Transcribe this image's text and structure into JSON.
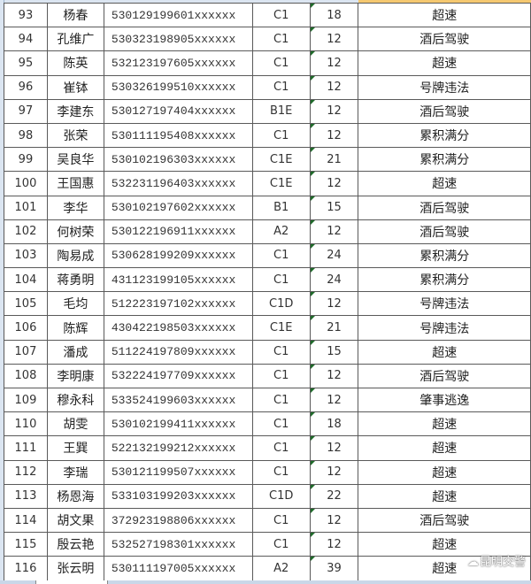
{
  "rows": [
    {
      "no": "93",
      "name": "杨春",
      "id": "530129199601xxxxxx",
      "class": "C1",
      "points": "18",
      "reason": "超速"
    },
    {
      "no": "94",
      "name": "孔维广",
      "id": "530323198905xxxxxx",
      "class": "C1",
      "points": "12",
      "reason": "酒后驾驶"
    },
    {
      "no": "95",
      "name": "陈英",
      "id": "532123197605xxxxxx",
      "class": "C1",
      "points": "12",
      "reason": "超速"
    },
    {
      "no": "96",
      "name": "崔钵",
      "id": "530326199510xxxxxx",
      "class": "C1",
      "points": "12",
      "reason": "号牌违法"
    },
    {
      "no": "97",
      "name": "李建东",
      "id": "530127197404xxxxxx",
      "class": "B1E",
      "points": "12",
      "reason": "酒后驾驶"
    },
    {
      "no": "98",
      "name": "张荣",
      "id": "530111195408xxxxxx",
      "class": "C1",
      "points": "12",
      "reason": "累积满分"
    },
    {
      "no": "99",
      "name": "吴良华",
      "id": "530102196303xxxxxx",
      "class": "C1E",
      "points": "21",
      "reason": "累积满分"
    },
    {
      "no": "100",
      "name": "王国惠",
      "id": "532231196403xxxxxx",
      "class": "C1E",
      "points": "12",
      "reason": "超速"
    },
    {
      "no": "101",
      "name": "李华",
      "id": "530102197602xxxxxx",
      "class": "B1",
      "points": "15",
      "reason": "酒后驾驶"
    },
    {
      "no": "102",
      "name": "何树荣",
      "id": "530122196911xxxxxx",
      "class": "A2",
      "points": "12",
      "reason": "酒后驾驶"
    },
    {
      "no": "103",
      "name": "陶易成",
      "id": "530628199209xxxxxx",
      "class": "C1",
      "points": "24",
      "reason": "累积满分"
    },
    {
      "no": "104",
      "name": "蒋勇明",
      "id": "431123199105xxxxxx",
      "class": "C1",
      "points": "24",
      "reason": "累积满分"
    },
    {
      "no": "105",
      "name": "毛均",
      "id": "512223197102xxxxxx",
      "class": "C1D",
      "points": "12",
      "reason": "号牌违法"
    },
    {
      "no": "106",
      "name": "陈辉",
      "id": "430422198503xxxxxx",
      "class": "C1E",
      "points": "21",
      "reason": "号牌违法"
    },
    {
      "no": "107",
      "name": "潘成",
      "id": "511224197809xxxxxx",
      "class": "C1",
      "points": "15",
      "reason": "超速"
    },
    {
      "no": "108",
      "name": "李明康",
      "id": "532224197709xxxxxx",
      "class": "C1",
      "points": "12",
      "reason": "酒后驾驶"
    },
    {
      "no": "109",
      "name": "穆永科",
      "id": "533524199603xxxxxx",
      "class": "C1",
      "points": "12",
      "reason": "肇事逃逸"
    },
    {
      "no": "110",
      "name": "胡雯",
      "id": "530102199411xxxxxx",
      "class": "C1",
      "points": "18",
      "reason": "超速"
    },
    {
      "no": "111",
      "name": "王巽",
      "id": "522132199212xxxxxx",
      "class": "C1",
      "points": "12",
      "reason": "超速"
    },
    {
      "no": "112",
      "name": "李瑞",
      "id": "530121199507xxxxxx",
      "class": "C1",
      "points": "12",
      "reason": "超速"
    },
    {
      "no": "113",
      "name": "杨恩海",
      "id": "533103199203xxxxxx",
      "class": "C1D",
      "points": "22",
      "reason": "超速"
    },
    {
      "no": "114",
      "name": "胡文果",
      "id": "372923198806xxxxxx",
      "class": "C1",
      "points": "12",
      "reason": "酒后驾驶"
    },
    {
      "no": "115",
      "name": "殷云艳",
      "id": "532527198301xxxxxx",
      "class": "C1",
      "points": "12",
      "reason": "超速"
    },
    {
      "no": "116",
      "name": "张云明",
      "id": "530111197005xxxxxx",
      "class": "A2",
      "points": "39",
      "reason": "超速"
    }
  ],
  "watermark": "昆明交警",
  "colors": {
    "grid": "#5a5a5a",
    "error_marker": "#1f6b2a",
    "header_bg": "#dbe5f1",
    "selection": "#f5c870"
  }
}
